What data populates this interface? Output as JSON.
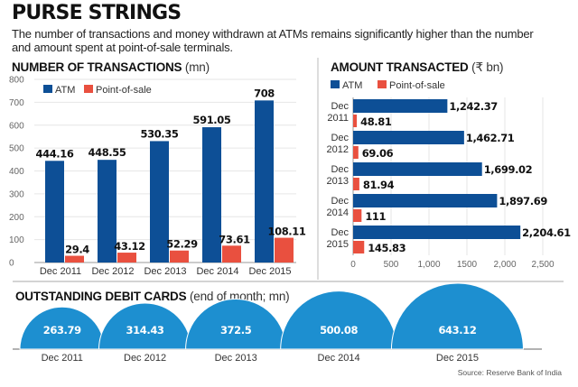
{
  "header": {
    "title": "PURSE STRINGS",
    "subtitle": "The number of transactions and money withdrawn at ATMs remains significantly higher than the number and amount spent at point-of-sale terminals."
  },
  "colors": {
    "atm": "#0d4f96",
    "pos": "#e9503f",
    "cards": "#1d8fd0",
    "grid": "#e6e6e6",
    "axis": "#999999"
  },
  "source": "Source: Reserve Bank of India",
  "chart_data": [
    {
      "type": "bar",
      "title": "NUMBER OF TRANSACTIONS",
      "unit": "(mn)",
      "orientation": "vertical",
      "categories": [
        "Dec 2011",
        "Dec 2012",
        "Dec 2013",
        "Dec 2014",
        "Dec 2015"
      ],
      "series": [
        {
          "name": "ATM",
          "values": [
            444.16,
            448.55,
            530.35,
            591.05,
            708
          ],
          "labels": [
            "444.16",
            "448.55",
            "530.35",
            "591.05",
            "708"
          ]
        },
        {
          "name": "Point-of-sale",
          "values": [
            29.4,
            43.12,
            52.29,
            73.61,
            108.11
          ],
          "labels": [
            "29.4",
            "43.12",
            "52.29",
            "73.61",
            "108.11"
          ]
        }
      ],
      "ylim": [
        0,
        800
      ],
      "yticks": [
        0,
        100,
        200,
        300,
        400,
        500,
        600,
        700,
        800
      ],
      "ytick_labels": [
        "0",
        "100",
        "200",
        "300",
        "400",
        "500",
        "600",
        "700",
        "800"
      ],
      "grid": true,
      "legend": "top-left"
    },
    {
      "type": "bar",
      "title": "AMOUNT TRANSACTED",
      "unit": "(₹ bn)",
      "orientation": "horizontal",
      "categories": [
        "Dec 2011",
        "Dec 2012",
        "Dec 2013",
        "Dec 2014",
        "Dec 2015"
      ],
      "category_lines": [
        [
          "Dec",
          "2011"
        ],
        [
          "Dec",
          "2012"
        ],
        [
          "Dec",
          "2013"
        ],
        [
          "Dec",
          "2014"
        ],
        [
          "Dec",
          "2015"
        ]
      ],
      "series": [
        {
          "name": "ATM",
          "values": [
            1242.37,
            1462.71,
            1699.02,
            1897.69,
            2204.61
          ],
          "labels": [
            "1,242.37",
            "1,462.71",
            "1,699.02",
            "1,897.69",
            "2,204.61"
          ]
        },
        {
          "name": "Point-of-sale",
          "values": [
            48.81,
            69.06,
            81.94,
            111,
            145.83
          ],
          "labels": [
            "48.81",
            "69.06",
            "81.94",
            "111",
            "145.83"
          ]
        }
      ],
      "xlim": [
        0,
        2500
      ],
      "xticks": [
        0,
        500,
        1000,
        1500,
        2000,
        2500
      ],
      "xtick_labels": [
        "0",
        "500",
        "1,000",
        "1500",
        "2,000",
        "2,500"
      ],
      "grid": true,
      "legend": "top-left"
    },
    {
      "type": "area",
      "title": "OUTSTANDING DEBIT CARDS",
      "unit": "(end of month; mn)",
      "shape": "semicircle",
      "categories": [
        "Dec 2011",
        "Dec 2012",
        "Dec 2013",
        "Dec 2014",
        "Dec 2015"
      ],
      "values": [
        263.79,
        314.43,
        372.5,
        500.08,
        643.12
      ],
      "labels": [
        "263.79",
        "314.43",
        "372.5",
        "500.08",
        "643.12"
      ]
    }
  ]
}
